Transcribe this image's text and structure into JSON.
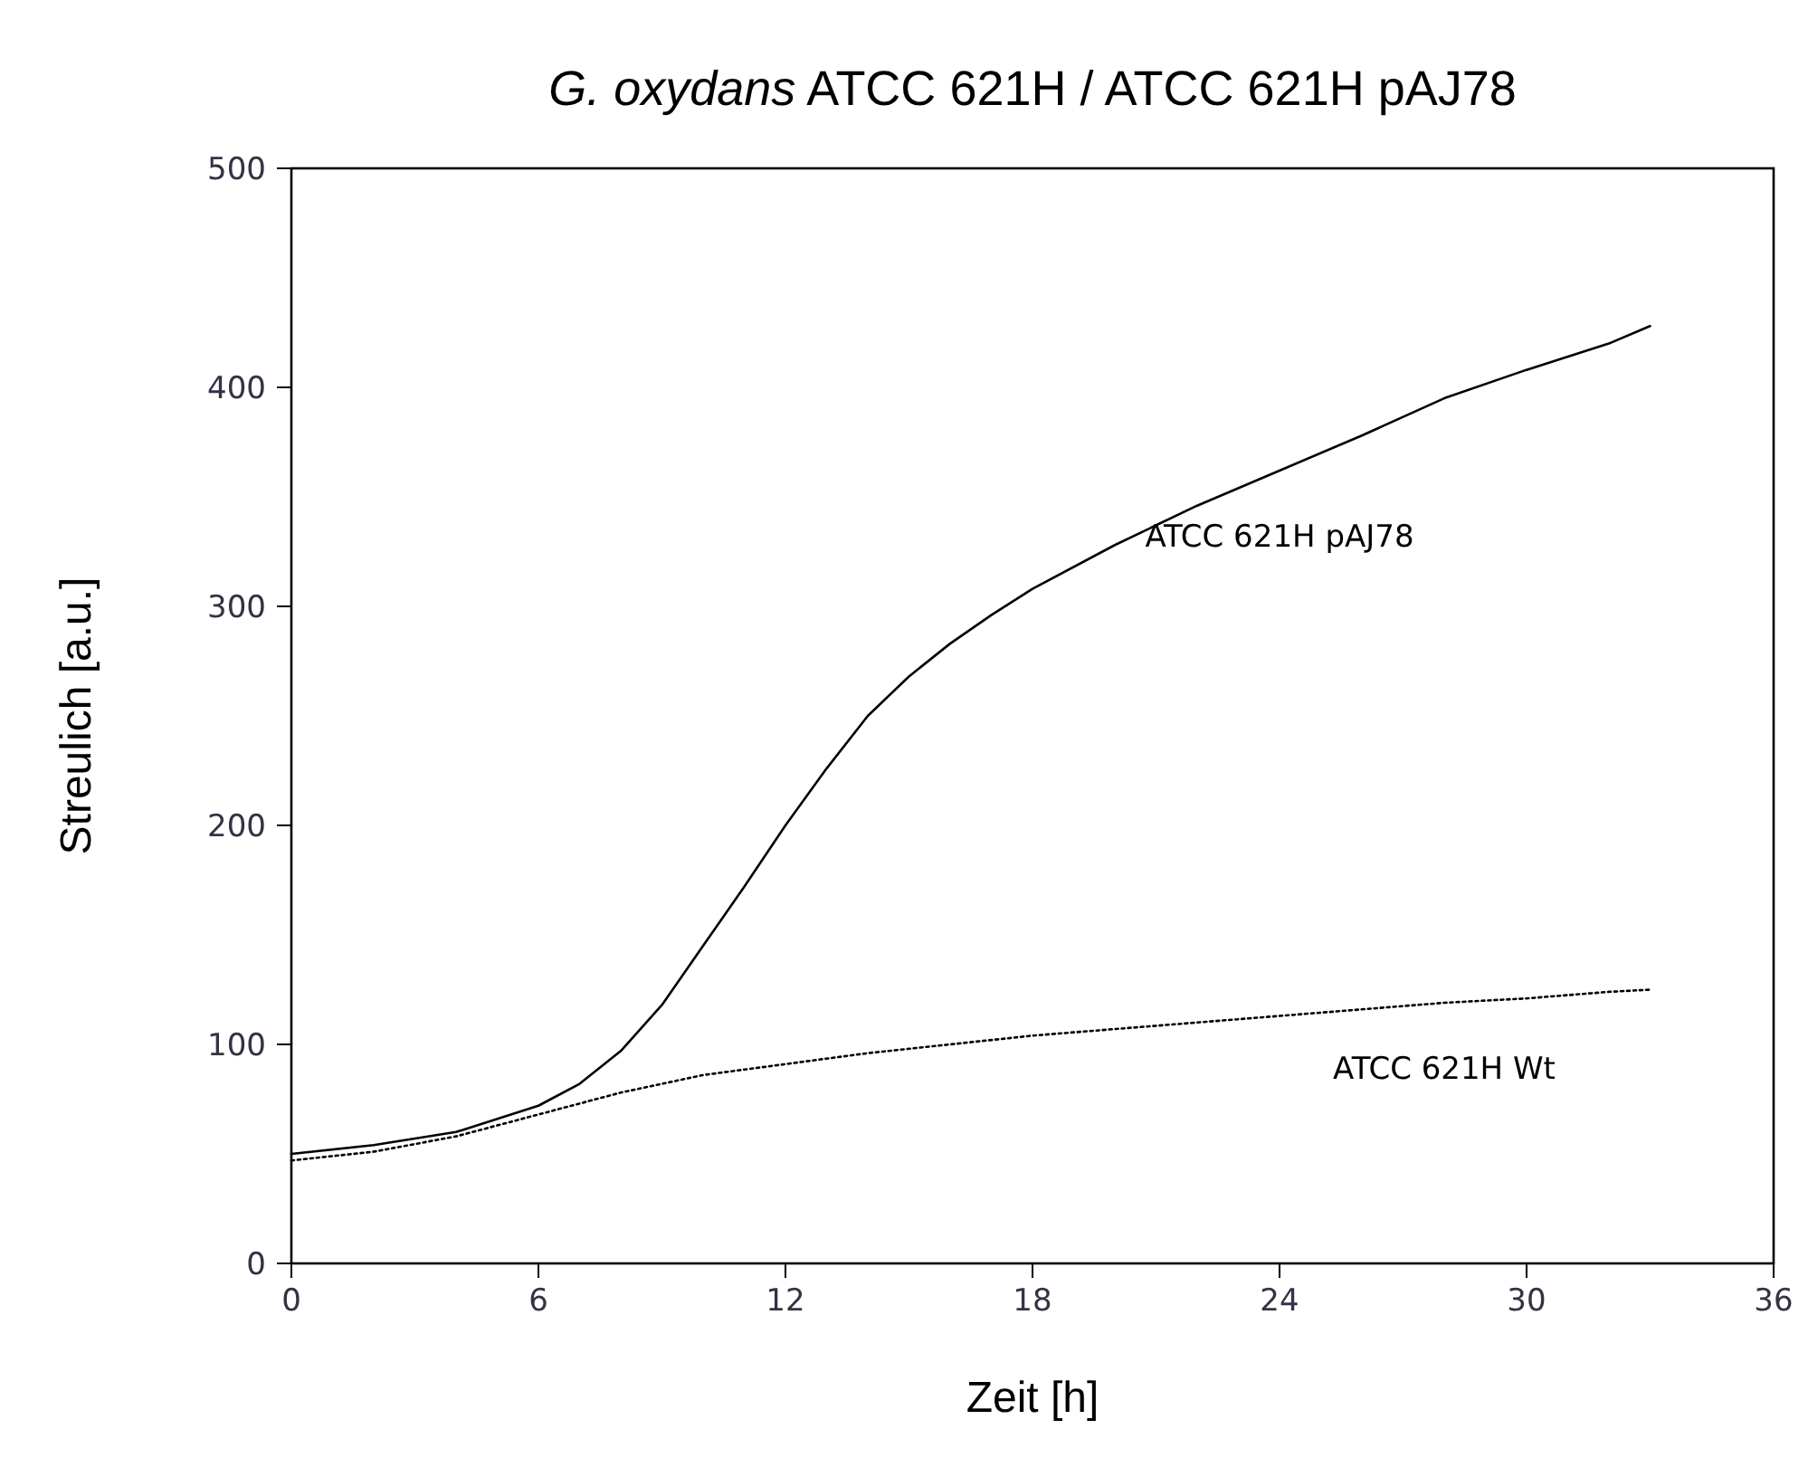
{
  "chart_data": {
    "type": "line",
    "title": "G. oxydans ATCC 621H / ATCC 621H pAJ78",
    "xlabel": "Zeit [h]",
    "ylabel": "Streulich [a.u.]",
    "xlim": [
      0,
      36
    ],
    "xticks": [
      0,
      6,
      12,
      18,
      24,
      30,
      36
    ],
    "ylim": [
      0,
      500
    ],
    "yticks": [
      0,
      100,
      200,
      300,
      400,
      500
    ],
    "grid": false,
    "marker": "none",
    "series": [
      {
        "name": "ATCC 621H pAJ78",
        "color": "#000000",
        "line_style": "solid",
        "x": [
          0,
          2,
          4,
          6,
          7,
          8,
          9,
          10,
          11,
          12,
          13,
          14,
          15,
          16,
          17,
          18,
          20,
          22,
          24,
          26,
          28,
          30,
          32,
          33
        ],
        "values": [
          50,
          54,
          60,
          72,
          82,
          97,
          118,
          145,
          172,
          200,
          226,
          250,
          268,
          283,
          296,
          308,
          328,
          346,
          362,
          378,
          395,
          408,
          420,
          428
        ]
      },
      {
        "name": "ATCC 621H Wt",
        "color": "#000000",
        "line_style": "dotted",
        "x": [
          0,
          2,
          4,
          6,
          8,
          10,
          12,
          14,
          16,
          18,
          20,
          22,
          24,
          26,
          28,
          30,
          32,
          33
        ],
        "values": [
          47,
          51,
          58,
          68,
          78,
          86,
          91,
          96,
          100,
          104,
          107,
          110,
          113,
          116,
          119,
          121,
          124,
          125
        ]
      }
    ]
  }
}
